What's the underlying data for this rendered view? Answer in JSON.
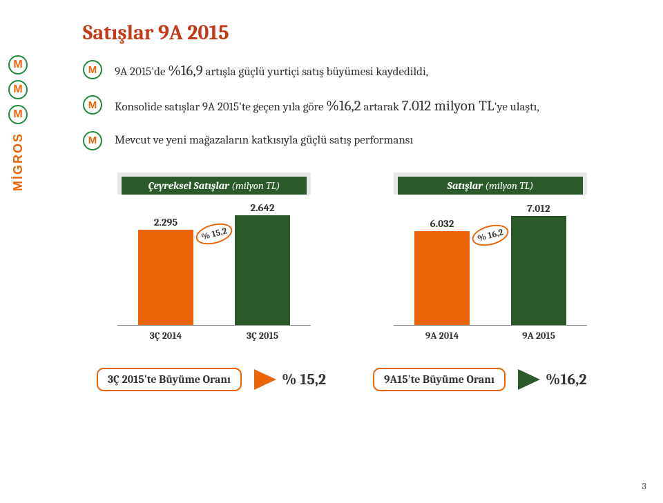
{
  "colors": {
    "title": "#c23a1a",
    "bar1": "#eb6508",
    "bar2": "#2a5a2a",
    "accent": "#eb6508",
    "chart_header_bg": "#2a5a2a",
    "chart_header_border": "#e8e8e8",
    "axis": "#888888",
    "background": "#ffffff",
    "text": "#333333"
  },
  "page_number": "3",
  "title": "Satışlar 9A 2015",
  "bullets": [
    "9A 2015'de <span class=\"big\">%16,9</span> artışla güçlü yurtiçi satış büyümesi kaydedildi,",
    "Konsolide satışlar 9A 2015'te geçen yıla göre <span class=\"big\">%16,2</span> artarak <span class=\"big\">7.012 milyon TL</span>'ye ulaştı,",
    "Mevcut ve yeni mağazaların katkısıyla güçlü satış performansı"
  ],
  "charts": [
    {
      "title": "Çeyreksel Satışlar",
      "subtitle": "(milyon TL)",
      "type": "bar",
      "ymax": 3000,
      "categories": [
        "3Ç 2014",
        "3Ç 2015"
      ],
      "values": [
        2295,
        2642
      ],
      "value_labels": [
        "2.295",
        "2.642"
      ],
      "bar_colors": [
        "#eb6508",
        "#2a5a2a"
      ],
      "badge": "% 15,2"
    },
    {
      "title": "Satışlar",
      "subtitle": "(milyon TL)",
      "type": "bar",
      "ymax": 8000,
      "categories": [
        "9A 2014",
        "9A 2015"
      ],
      "values": [
        6032,
        7012
      ],
      "value_labels": [
        "6.032",
        "7.012"
      ],
      "bar_colors": [
        "#eb6508",
        "#2a5a2a"
      ],
      "badge": "% 16,2"
    }
  ],
  "footer": [
    {
      "label": "3Ç 2015'te Büyüme Oranı",
      "value": "% 15,2",
      "arrow_color": "#eb6508"
    },
    {
      "label": "9A15'te Büyüme Oranı",
      "value": "%16,2",
      "arrow_color": "#2a5a2a"
    }
  ],
  "logo_letters": [
    "M",
    "M",
    "M"
  ],
  "logo_brand": "MİGROS"
}
